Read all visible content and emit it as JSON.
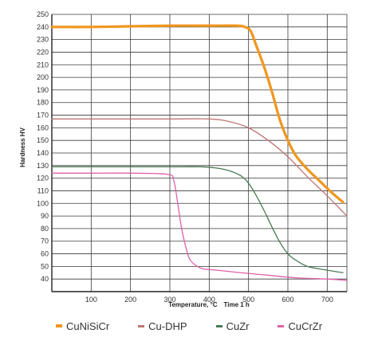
{
  "chart_data": {
    "type": "line",
    "xlabel_left": "Temperature, °C",
    "xlabel_right": "Time 1 h",
    "ylabel": "Hardness HV",
    "xlim": [
      0,
      750
    ],
    "ylim": [
      30,
      250
    ],
    "x_ticks": [
      100,
      200,
      300,
      400,
      500,
      600,
      700
    ],
    "y_ticks": [
      40,
      50,
      60,
      70,
      80,
      90,
      100,
      110,
      120,
      130,
      140,
      150,
      160,
      170,
      180,
      190,
      200,
      210,
      220,
      230,
      240,
      250
    ],
    "grid": true,
    "legend_position": "bottom",
    "series": [
      {
        "name": "CuNiSiCr",
        "color": "#f0961e",
        "emphasis": "thick",
        "points": [
          [
            0,
            240
          ],
          [
            100,
            240
          ],
          [
            200,
            240.5
          ],
          [
            300,
            241
          ],
          [
            400,
            241
          ],
          [
            470,
            241
          ],
          [
            490,
            240
          ],
          [
            505,
            237
          ],
          [
            520,
            225
          ],
          [
            540,
            208
          ],
          [
            560,
            188
          ],
          [
            580,
            166
          ],
          [
            600,
            150
          ],
          [
            620,
            138
          ],
          [
            650,
            127
          ],
          [
            680,
            118
          ],
          [
            710,
            109
          ],
          [
            740,
            101
          ]
        ]
      },
      {
        "name": "Cu-DHP",
        "color": "#c07575",
        "emphasis": "thin",
        "points": [
          [
            0,
            167
          ],
          [
            100,
            167
          ],
          [
            200,
            167
          ],
          [
            300,
            167
          ],
          [
            400,
            167
          ],
          [
            450,
            165
          ],
          [
            500,
            160
          ],
          [
            550,
            150
          ],
          [
            600,
            137
          ],
          [
            650,
            121
          ],
          [
            700,
            106
          ],
          [
            750,
            90
          ]
        ]
      },
      {
        "name": "CuZr",
        "color": "#4a7a55",
        "emphasis": "thin",
        "points": [
          [
            0,
            129
          ],
          [
            100,
            129
          ],
          [
            200,
            129
          ],
          [
            300,
            129
          ],
          [
            380,
            129
          ],
          [
            420,
            128
          ],
          [
            450,
            126
          ],
          [
            480,
            122
          ],
          [
            500,
            116
          ],
          [
            520,
            106
          ],
          [
            540,
            94
          ],
          [
            560,
            81
          ],
          [
            580,
            69
          ],
          [
            600,
            60
          ],
          [
            620,
            55
          ],
          [
            650,
            50
          ],
          [
            700,
            47
          ],
          [
            740,
            45
          ]
        ]
      },
      {
        "name": "CuCrZr",
        "color": "#e060a8",
        "emphasis": "thin",
        "points": [
          [
            0,
            124
          ],
          [
            100,
            124
          ],
          [
            200,
            124
          ],
          [
            295,
            123
          ],
          [
            310,
            118
          ],
          [
            320,
            100
          ],
          [
            330,
            80
          ],
          [
            340,
            66
          ],
          [
            350,
            56
          ],
          [
            365,
            51
          ],
          [
            385,
            48
          ],
          [
            420,
            47
          ],
          [
            480,
            45
          ],
          [
            550,
            43
          ],
          [
            620,
            41
          ],
          [
            700,
            40
          ],
          [
            750,
            39
          ]
        ]
      }
    ]
  }
}
